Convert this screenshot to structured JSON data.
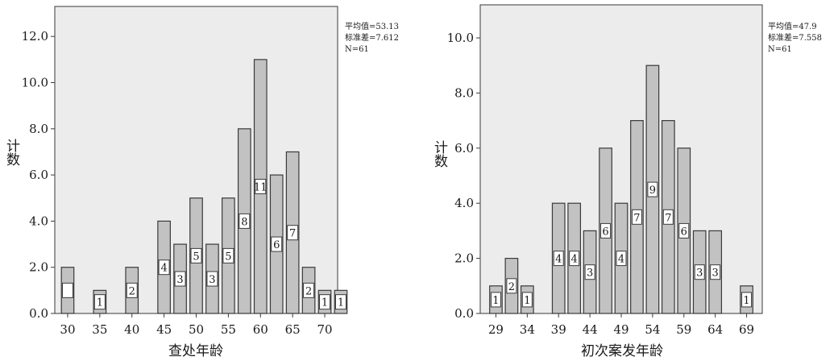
{
  "colors": {
    "plot_bg": "#ececec",
    "bar_fill": "#c2c2c2",
    "bar_stroke": "#3a3a3a",
    "frame": "#3a3a3a"
  },
  "chart_data": [
    {
      "type": "bar",
      "xlabel": "查处年龄",
      "ylabel": "计数",
      "ylim": [
        0,
        13.3
      ],
      "y_ticks": [
        "0.0",
        "2.0",
        "4.0",
        "6.0",
        "8.0",
        "10.0",
        "12.0"
      ],
      "y_tick_values": [
        0,
        2,
        4,
        6,
        8,
        10,
        12
      ],
      "x_ticks": [
        "30",
        "35",
        "40",
        "45",
        "50",
        "55",
        "60",
        "65",
        "70"
      ],
      "x_tick_values": [
        30,
        35,
        40,
        45,
        50,
        55,
        60,
        65,
        70
      ],
      "xlim": [
        28,
        72
      ],
      "grid": false,
      "stats": [
        "平均值=53.13",
        "标准差=7.612",
        "N=61"
      ],
      "bars": [
        {
          "x": 30,
          "value": 2,
          "label": ""
        },
        {
          "x": 35,
          "value": 1,
          "label": "1"
        },
        {
          "x": 40,
          "value": 2,
          "label": "2"
        },
        {
          "x": 45,
          "value": 4,
          "label": "4"
        },
        {
          "x": 47.5,
          "value": 3,
          "label": "3"
        },
        {
          "x": 50,
          "value": 5,
          "label": "5"
        },
        {
          "x": 52.5,
          "value": 3,
          "label": "3"
        },
        {
          "x": 55,
          "value": 5,
          "label": "5"
        },
        {
          "x": 57.5,
          "value": 8,
          "label": "8"
        },
        {
          "x": 60,
          "value": 11,
          "label": "11"
        },
        {
          "x": 62.5,
          "value": 6,
          "label": "6"
        },
        {
          "x": 65,
          "value": 7,
          "label": "7"
        },
        {
          "x": 67.5,
          "value": 2,
          "label": "2"
        },
        {
          "x": 70,
          "value": 1,
          "label": "1"
        },
        {
          "x": 72.5,
          "value": 1,
          "label": "1"
        }
      ]
    },
    {
      "type": "bar",
      "xlabel": "初次案发年龄",
      "ylabel": "计数",
      "ylim": [
        0,
        11.2
      ],
      "y_ticks": [
        "0.0",
        "2.0",
        "4.0",
        "6.0",
        "8.0",
        "10.0"
      ],
      "y_tick_values": [
        0,
        2,
        4,
        6,
        8,
        10
      ],
      "x_ticks": [
        "29",
        "34",
        "39",
        "44",
        "49",
        "54",
        "59",
        "64",
        "69"
      ],
      "x_tick_values": [
        29,
        34,
        39,
        44,
        49,
        54,
        59,
        64,
        69
      ],
      "xlim": [
        26.5,
        71.5
      ],
      "grid": false,
      "stats": [
        "平均值=47.9",
        "标准差=7.558",
        "N=61"
      ],
      "bars": [
        {
          "x": 29,
          "value": 1,
          "label": "1"
        },
        {
          "x": 31.5,
          "value": 2,
          "label": "2"
        },
        {
          "x": 34,
          "value": 1,
          "label": "1"
        },
        {
          "x": 39,
          "value": 4,
          "label": "4"
        },
        {
          "x": 41.5,
          "value": 4,
          "label": "4"
        },
        {
          "x": 44,
          "value": 3,
          "label": "3"
        },
        {
          "x": 46.5,
          "value": 6,
          "label": "6"
        },
        {
          "x": 49,
          "value": 4,
          "label": "4"
        },
        {
          "x": 51.5,
          "value": 7,
          "label": "7"
        },
        {
          "x": 54,
          "value": 9,
          "label": "9"
        },
        {
          "x": 56.5,
          "value": 7,
          "label": "7"
        },
        {
          "x": 59,
          "value": 6,
          "label": "6"
        },
        {
          "x": 61.5,
          "value": 3,
          "label": "3"
        },
        {
          "x": 64,
          "value": 3,
          "label": "3"
        },
        {
          "x": 69,
          "value": 1,
          "label": "1"
        }
      ]
    }
  ]
}
